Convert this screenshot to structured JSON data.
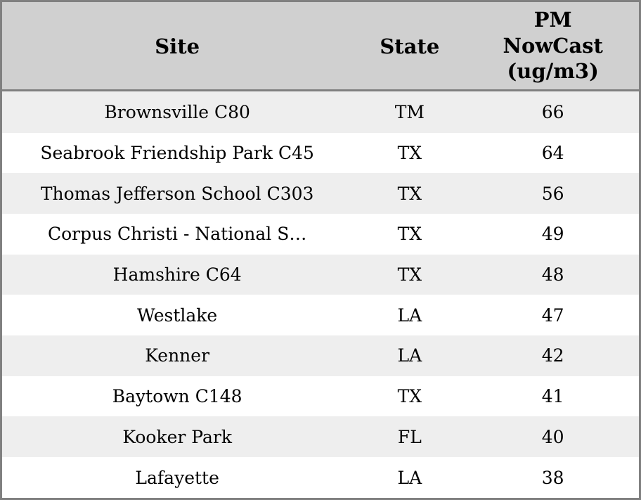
{
  "chart_data": {
    "type": "table",
    "title": "",
    "columns": [
      "Site",
      "State",
      "PM NowCast (ug/m3)"
    ],
    "rows": [
      {
        "site": "Brownsville C80",
        "state": "TM",
        "value": "66"
      },
      {
        "site": "Seabrook Friendship Park C45",
        "state": "TX",
        "value": "64"
      },
      {
        "site": "Thomas Jefferson School C303",
        "state": "TX",
        "value": "56"
      },
      {
        "site": "Corpus Christi - National S…",
        "state": "TX",
        "value": "49"
      },
      {
        "site": "Hamshire C64",
        "state": "TX",
        "value": "48"
      },
      {
        "site": "Westlake",
        "state": "LA",
        "value": "47"
      },
      {
        "site": "Kenner",
        "state": "LA",
        "value": "42"
      },
      {
        "site": "Baytown C148",
        "state": "TX",
        "value": "41"
      },
      {
        "site": "Kooker Park",
        "state": "FL",
        "value": "40"
      },
      {
        "site": "Lafayette",
        "state": "LA",
        "value": "38"
      }
    ]
  },
  "colors": {
    "border": "#808080",
    "header_bg": "#d0d0d0",
    "row_alt_bg": "#eeeeee",
    "row_bg": "#ffffff",
    "text": "#000000"
  }
}
